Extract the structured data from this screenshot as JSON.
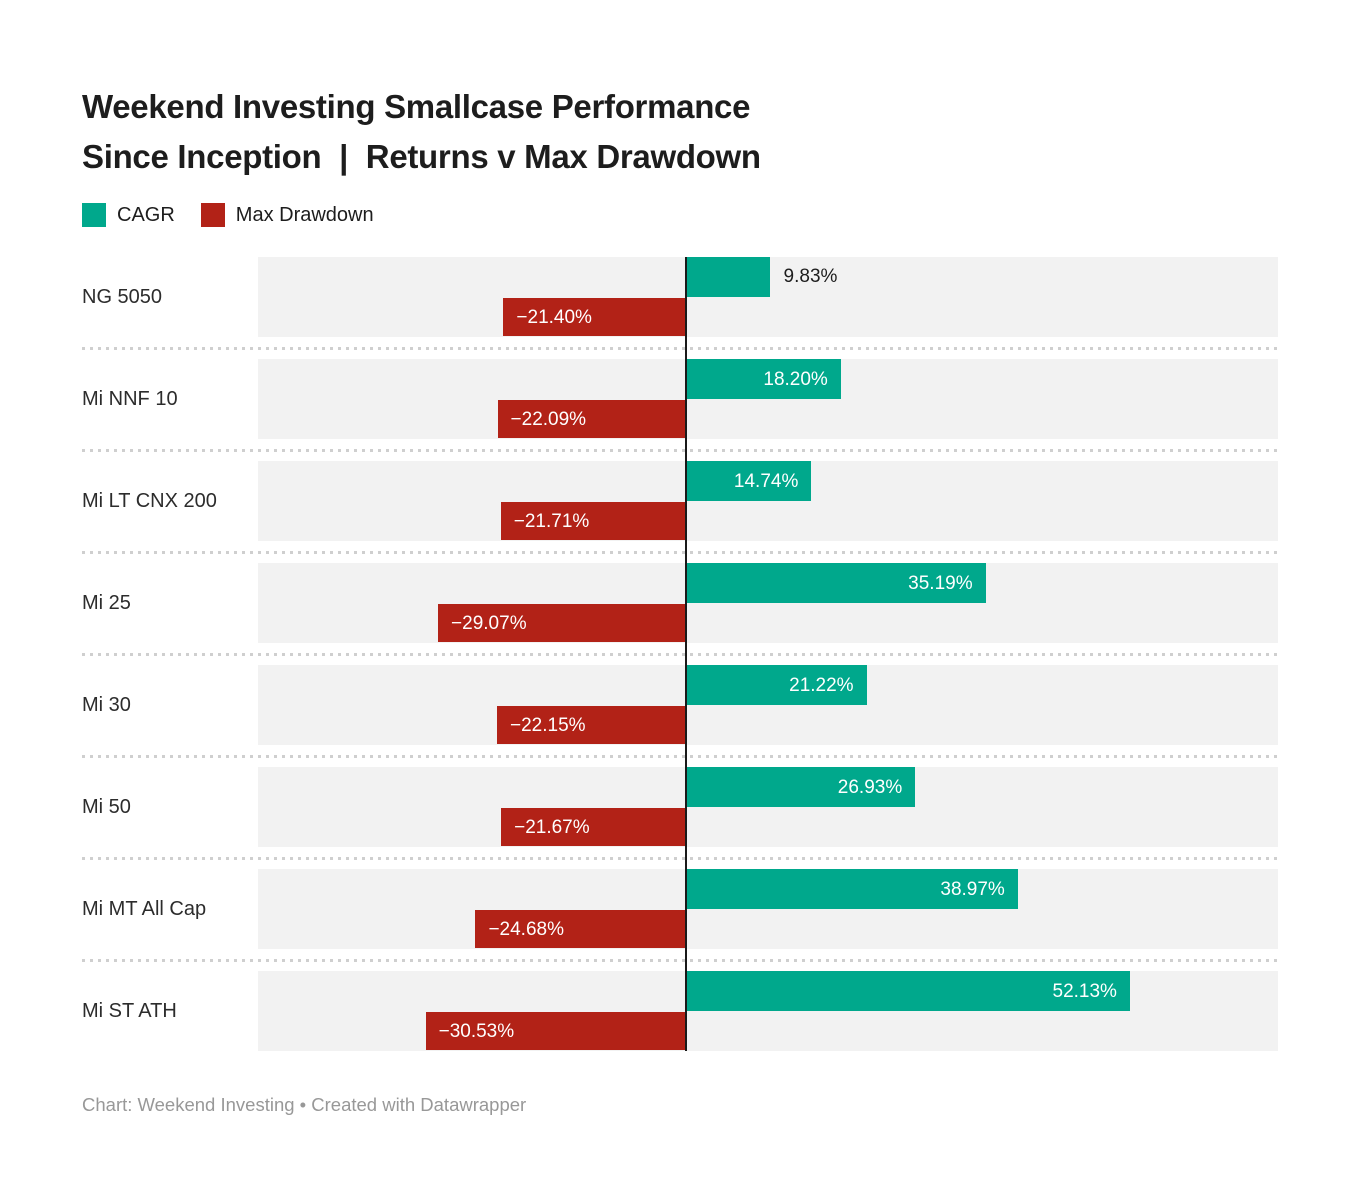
{
  "title": {
    "line1": "Weekend Investing Smallcase Performance",
    "line2": "Since Inception  |  Returns v Max Drawdown"
  },
  "legend": {
    "items": [
      {
        "label": "CAGR",
        "color": "#00a88c"
      },
      {
        "label": "Max Drawdown",
        "color": "#b22217"
      }
    ]
  },
  "colors": {
    "cagr": "#00a88c",
    "drawdown": "#b22217",
    "row_band": "#f2f2f2",
    "axis_line": "#1a1a1a",
    "separator": "#cfcfcf",
    "inside_label": "#ffffff",
    "outside_label": "#1d1d1d",
    "footer_text": "#989898"
  },
  "footer": {
    "text": "Chart: Weekend Investing • Created with Datawrapper"
  },
  "chart_data": {
    "type": "bar",
    "orientation": "horizontal-diverging",
    "title": "Weekend Investing Smallcase Performance Since Inception | Returns v Max Drawdown",
    "xlabel": "",
    "ylabel": "",
    "xlim": [
      -50.2,
      69.5
    ],
    "grid": false,
    "legend_position": "top-left",
    "categories": [
      "NG 5050",
      "Mi NNF 10",
      "Mi LT CNX 200",
      "Mi 25",
      "Mi 30",
      "Mi 50",
      "Mi MT All Cap",
      "Mi ST ATH"
    ],
    "series": [
      {
        "name": "CAGR",
        "values": [
          9.83,
          18.2,
          14.74,
          35.19,
          21.22,
          26.93,
          38.97,
          52.13
        ],
        "labels": [
          "9.83%",
          "18.20%",
          "14.74%",
          "35.19%",
          "21.22%",
          "26.93%",
          "38.97%",
          "52.13%"
        ]
      },
      {
        "name": "Max Drawdown",
        "values": [
          -21.4,
          -22.09,
          -21.71,
          -29.07,
          -22.15,
          -21.67,
          -24.68,
          -30.53
        ],
        "labels": [
          "−21.40%",
          "−22.09%",
          "−21.71%",
          "−29.07%",
          "−22.15%",
          "−21.67%",
          "−24.68%",
          "−30.53%"
        ]
      }
    ]
  }
}
